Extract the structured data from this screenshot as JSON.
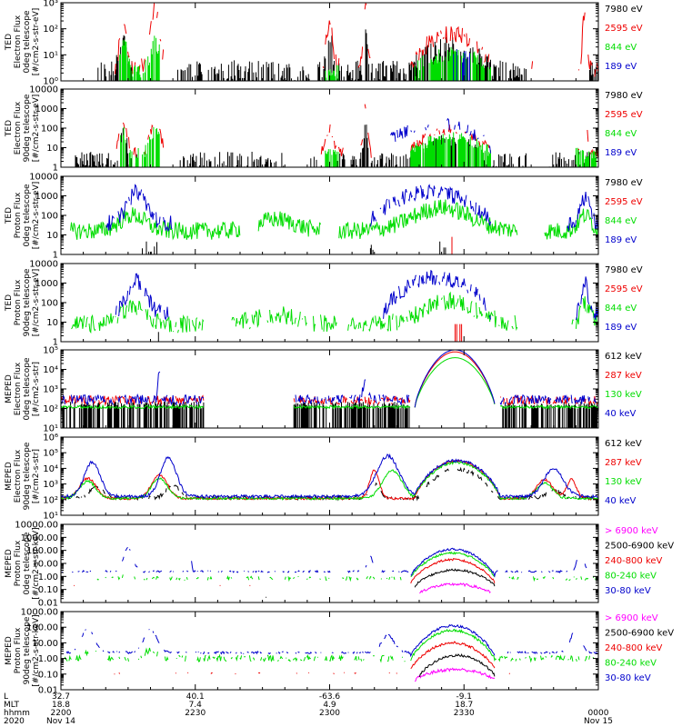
{
  "colors": {
    "black": "#000000",
    "red": "#ee0000",
    "green": "#00dd00",
    "blue": "#0000cc",
    "magenta": "#ff00ff"
  },
  "chart_data": {
    "type": "line",
    "x_range": [
      0,
      120
    ],
    "x_ticks": [
      0,
      30,
      60,
      90,
      120
    ],
    "x_axis_rows": [
      {
        "label": "L",
        "values": [
          "32.7",
          "40.1",
          "-63.6",
          "-9.1",
          ""
        ]
      },
      {
        "label": "MLT",
        "values": [
          "18.8",
          "7.4",
          "4.9",
          "18.7",
          ""
        ]
      },
      {
        "label": "hhmm",
        "values": [
          "2200",
          "2230",
          "2300",
          "2330",
          "0000"
        ]
      },
      {
        "label": "2020",
        "values": [
          "Nov 14",
          "",
          "",
          "",
          "Nov 15"
        ]
      }
    ],
    "panels": [
      {
        "id": "ted-electron-0deg",
        "ylabel_lines": [
          "TED",
          "Electron Flux",
          "0deg telescope",
          "[#/cm2-s-str-eV]"
        ],
        "log_range": [
          0,
          3
        ],
        "tick_labels": [
          "10⁰",
          "10¹",
          "10²",
          "10³"
        ],
        "tick_exps": [
          0,
          1,
          2,
          3
        ],
        "legend": [
          {
            "label": "7980 eV",
            "color": "black"
          },
          {
            "label": "2595 eV",
            "color": "red"
          },
          {
            "label": "844 eV",
            "color": "green"
          },
          {
            "label": "189 eV",
            "color": "blue"
          }
        ]
      },
      {
        "id": "ted-electron-90deg",
        "ylabel_lines": [
          "TED",
          "Electron Flux",
          "90deg telescope",
          "[#/cm2-s-str-eV]"
        ],
        "log_range": [
          0,
          4
        ],
        "tick_labels": [
          "1",
          "10",
          "100",
          "1000",
          "10000"
        ],
        "tick_exps": [
          0,
          1,
          2,
          3,
          4
        ],
        "legend": [
          {
            "label": "7980 eV",
            "color": "black"
          },
          {
            "label": "2595 eV",
            "color": "red"
          },
          {
            "label": "844 eV",
            "color": "green"
          },
          {
            "label": "189 eV",
            "color": "blue"
          }
        ]
      },
      {
        "id": "ted-proton-0deg",
        "ylabel_lines": [
          "TED",
          "Proton Flux",
          "0deg telescope",
          "[#/cm2-s-str-eV]"
        ],
        "log_range": [
          0,
          4
        ],
        "tick_labels": [
          "1",
          "10",
          "100",
          "1000",
          "10000"
        ],
        "tick_exps": [
          0,
          1,
          2,
          3,
          4
        ],
        "legend": [
          {
            "label": "7980 eV",
            "color": "black"
          },
          {
            "label": "2595 eV",
            "color": "red"
          },
          {
            "label": "844 eV",
            "color": "green"
          },
          {
            "label": "189 eV",
            "color": "blue"
          }
        ]
      },
      {
        "id": "ted-proton-90deg",
        "ylabel_lines": [
          "TED",
          "Proton Flux",
          "90deg telescope",
          "[#/cm2-s-str-eV]"
        ],
        "log_range": [
          0,
          4
        ],
        "tick_labels": [
          "1",
          "10",
          "100",
          "1000",
          "10000"
        ],
        "tick_exps": [
          0,
          1,
          2,
          3,
          4
        ],
        "legend": [
          {
            "label": "7980 eV",
            "color": "black"
          },
          {
            "label": "2595 eV",
            "color": "red"
          },
          {
            "label": "844 eV",
            "color": "green"
          },
          {
            "label": "189 eV",
            "color": "blue"
          }
        ]
      },
      {
        "id": "meped-electron-0deg",
        "ylabel_lines": [
          "MEPED",
          "Electron Flux",
          "0deg telescope",
          "[#/cm2-s-str]"
        ],
        "log_range": [
          1,
          5
        ],
        "tick_labels": [
          "10¹",
          "10²",
          "10³",
          "10⁴",
          "10⁵"
        ],
        "tick_exps": [
          1,
          2,
          3,
          4,
          5
        ],
        "legend": [
          {
            "label": "612 keV",
            "color": "black"
          },
          {
            "label": "287 keV",
            "color": "red"
          },
          {
            "label": "130 keV",
            "color": "green"
          },
          {
            "label": "40 keV",
            "color": "blue"
          }
        ]
      },
      {
        "id": "meped-electron-90deg",
        "ylabel_lines": [
          "MEPED",
          "Electron Flux",
          "90deg telescope",
          "[#/cm2-s-str]"
        ],
        "log_range": [
          1,
          6
        ],
        "tick_labels": [
          "10¹",
          "10²",
          "10³",
          "10⁴",
          "10⁵",
          "10⁶"
        ],
        "tick_exps": [
          1,
          2,
          3,
          4,
          5,
          6
        ],
        "legend": [
          {
            "label": "612 keV",
            "color": "black"
          },
          {
            "label": "287 keV",
            "color": "red"
          },
          {
            "label": "130 keV",
            "color": "green"
          },
          {
            "label": "40 keV",
            "color": "blue"
          }
        ]
      },
      {
        "id": "meped-proton-0deg",
        "ylabel_lines": [
          "MEPED",
          "Proton Flux",
          "0deg telescope",
          "[#/cm2-s-str-keV]"
        ],
        "log_range": [
          -2,
          4
        ],
        "tick_labels": [
          "0.01",
          "0.10",
          "1.00",
          "10.00",
          "100.00",
          "1000.00",
          "10000.00"
        ],
        "tick_exps": [
          -2,
          -1,
          0,
          1,
          2,
          3,
          4
        ],
        "legend": [
          {
            "label": "> 6900 keV",
            "color": "magenta"
          },
          {
            "label": "2500-6900 keV",
            "color": "black"
          },
          {
            "label": "240-800 keV",
            "color": "red"
          },
          {
            "label": "80-240 keV",
            "color": "green"
          },
          {
            "label": "30-80 keV",
            "color": "blue"
          }
        ]
      },
      {
        "id": "meped-proton-90deg",
        "ylabel_lines": [
          "MEPED",
          "Proton Flux",
          "90deg telescope",
          "[#/cm2-s-str-keV]"
        ],
        "log_range": [
          -2,
          3
        ],
        "tick_labels": [
          "0.01",
          "0.10",
          "1.00",
          "10.00",
          "100.00",
          "1000.00"
        ],
        "tick_exps": [
          -2,
          -1,
          0,
          1,
          2,
          3
        ],
        "legend": [
          {
            "label": "> 6900 keV",
            "color": "magenta"
          },
          {
            "label": "2500-6900 keV",
            "color": "black"
          },
          {
            "label": "240-800 keV",
            "color": "red"
          },
          {
            "label": "80-240 keV",
            "color": "green"
          },
          {
            "label": "30-80 keV",
            "color": "blue"
          }
        ]
      }
    ]
  }
}
